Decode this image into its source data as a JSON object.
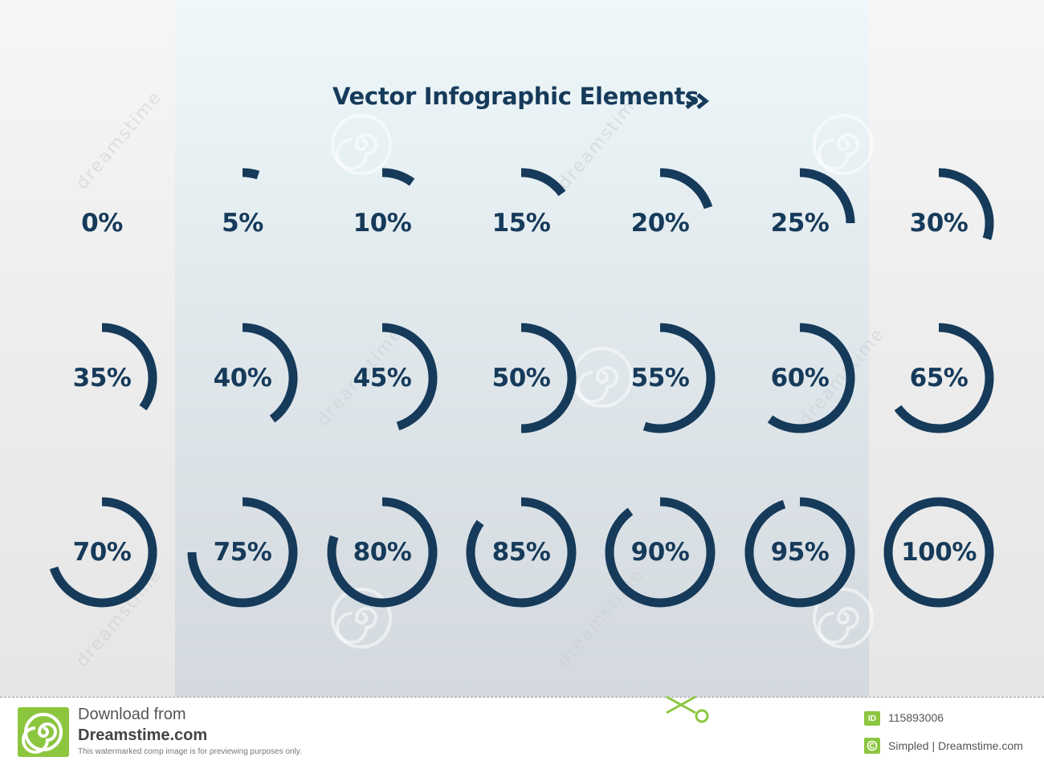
{
  "header": {
    "title": "Vector Infographic Elements"
  },
  "theme": {
    "ring_color": "#163a5a",
    "text_color": "#163a5a",
    "panel_top": "#eef8fa",
    "panel_bottom": "#d3d9de",
    "brand_green": "#8cc63f"
  },
  "progress_items": [
    {
      "label": "0%",
      "value": 0
    },
    {
      "label": "5%",
      "value": 5
    },
    {
      "label": "10%",
      "value": 10
    },
    {
      "label": "15%",
      "value": 15
    },
    {
      "label": "20%",
      "value": 20
    },
    {
      "label": "25%",
      "value": 25
    },
    {
      "label": "30%",
      "value": 30
    },
    {
      "label": "35%",
      "value": 35
    },
    {
      "label": "40%",
      "value": 40
    },
    {
      "label": "45%",
      "value": 45
    },
    {
      "label": "50%",
      "value": 50
    },
    {
      "label": "55%",
      "value": 55
    },
    {
      "label": "60%",
      "value": 60
    },
    {
      "label": "65%",
      "value": 65
    },
    {
      "label": "70%",
      "value": 70
    },
    {
      "label": "75%",
      "value": 75
    },
    {
      "label": "80%",
      "value": 80
    },
    {
      "label": "85%",
      "value": 85
    },
    {
      "label": "90%",
      "value": 90
    },
    {
      "label": "95%",
      "value": 95
    },
    {
      "label": "100%",
      "value": 100
    }
  ],
  "watermark": {
    "text": "dreamstime"
  },
  "footer": {
    "download_line1": "Download from",
    "download_line2": "Dreamstime.com",
    "note": "This watermarked comp image is for previewing purposes only.",
    "id_label": "ID",
    "id_value": "115893006",
    "credit": "Simpled | Dreamstime.com"
  }
}
